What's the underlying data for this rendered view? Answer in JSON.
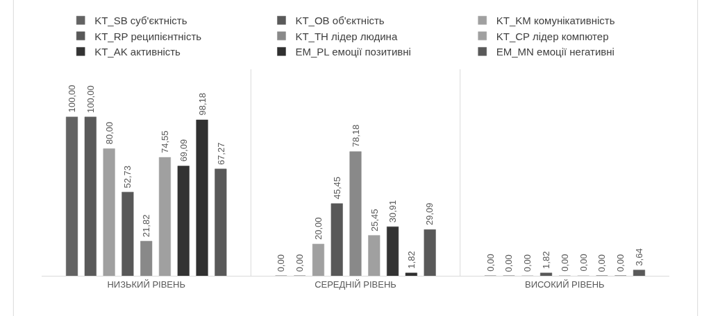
{
  "chart_data": {
    "type": "bar",
    "categories": [
      "НИЗЬКИЙ РІВЕНЬ",
      "СЕРЕДНІЙ РІВЕНЬ",
      "ВИСОКИЙ РІВЕНЬ"
    ],
    "series": [
      {
        "name": "KT_SB суб'єктність",
        "color": "#636363",
        "values": [
          100,
          0,
          0
        ],
        "value_labels": [
          "100,00",
          "0,00",
          "0,00"
        ]
      },
      {
        "name": "KT_OB об'єктність",
        "color": "#5a5a5a",
        "values": [
          100,
          0,
          0
        ],
        "value_labels": [
          "100,00",
          "0,00",
          "0,00"
        ]
      },
      {
        "name": "KT_KM комунікативність",
        "color": "#a0a0a0",
        "values": [
          80,
          20,
          0
        ],
        "value_labels": [
          "80,00",
          "20,00",
          "0,00"
        ]
      },
      {
        "name": "KT_RP реципієнтність",
        "color": "#585858",
        "values": [
          52.73,
          45.45,
          1.82
        ],
        "value_labels": [
          "52,73",
          "45,45",
          "1,82"
        ]
      },
      {
        "name": "KT_TH лідер людина",
        "color": "#898989",
        "values": [
          21.82,
          78.18,
          0
        ],
        "value_labels": [
          "21,82",
          "78,18",
          "0,00"
        ]
      },
      {
        "name": "KT_CP лідер компютер",
        "color": "#a0a0a0",
        "values": [
          74.55,
          25.45,
          0
        ],
        "value_labels": [
          "74,55",
          "25,45",
          "0,00"
        ]
      },
      {
        "name": "KT_AK активність",
        "color": "#333333",
        "values": [
          69.09,
          30.91,
          0
        ],
        "value_labels": [
          "69,09",
          "30,91",
          "0,00"
        ]
      },
      {
        "name": "EM_PL емоції позитивні",
        "color": "#303030",
        "values": [
          98.18,
          1.82,
          0
        ],
        "value_labels": [
          "98,18",
          "1,82",
          "0,00"
        ]
      },
      {
        "name": "EM_MN емоції негативні",
        "color": "#595959",
        "values": [
          67.27,
          29.09,
          3.64
        ],
        "value_labels": [
          "67,27",
          "29,09",
          "3,64"
        ]
      }
    ],
    "grid": "x",
    "legend": "top"
  }
}
